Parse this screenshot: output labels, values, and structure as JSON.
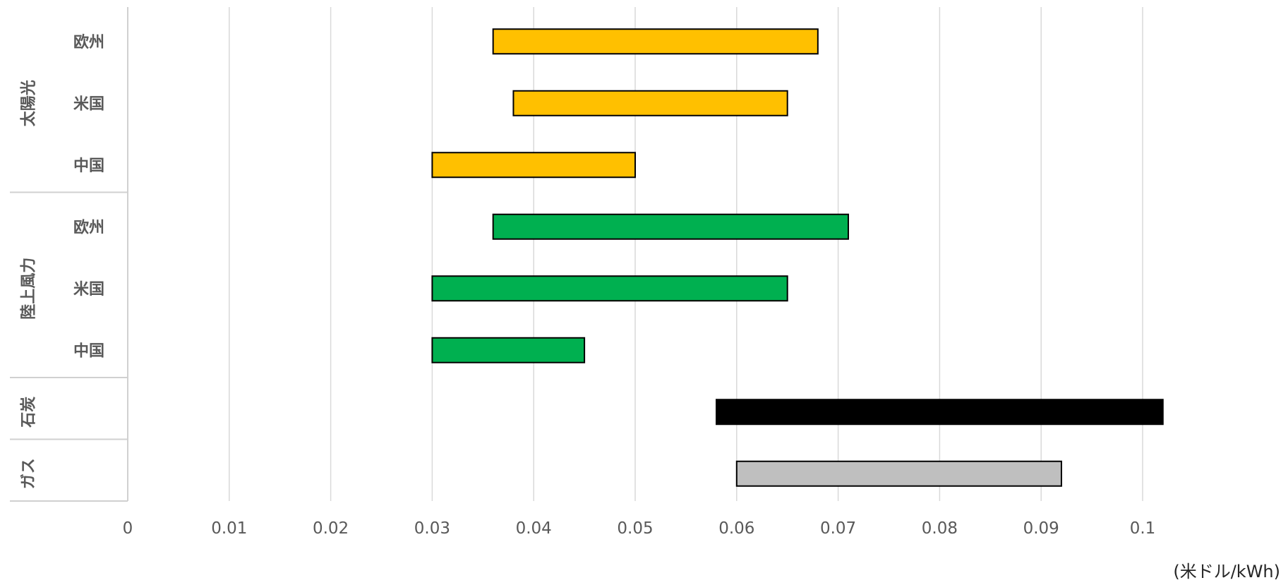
{
  "chart_data": {
    "type": "bar",
    "orientation": "horizontal",
    "subtype": "floating-range",
    "title": "",
    "xlabel": "",
    "ylabel": "",
    "unit": "(米ドル/kWh)",
    "xlim": [
      0,
      0.11
    ],
    "x_ticks": [
      0,
      0.01,
      0.02,
      0.03,
      0.04,
      0.05,
      0.06,
      0.07,
      0.08,
      0.09,
      0.1
    ],
    "x_tick_labels": [
      "0",
      "0.01",
      "0.02",
      "0.03",
      "0.04",
      "0.05",
      "0.06",
      "0.07",
      "0.08",
      "0.09",
      "0.1"
    ],
    "grid": true,
    "legend": "none",
    "groups": [
      {
        "label": "太陽光",
        "color": "#FFC000",
        "items": [
          {
            "label": "欧州",
            "low": 0.036,
            "high": 0.068
          },
          {
            "label": "米国",
            "low": 0.038,
            "high": 0.065
          },
          {
            "label": "中国",
            "low": 0.03,
            "high": 0.05
          }
        ]
      },
      {
        "label": "陸上風力",
        "color": "#00B050",
        "items": [
          {
            "label": "欧州",
            "low": 0.036,
            "high": 0.071
          },
          {
            "label": "米国",
            "low": 0.03,
            "high": 0.065
          },
          {
            "label": "中国",
            "low": 0.03,
            "high": 0.045
          }
        ]
      },
      {
        "label": "石炭",
        "color": "#000000",
        "items": [
          {
            "label": "",
            "low": 0.058,
            "high": 0.102
          }
        ]
      },
      {
        "label": "ガス",
        "color": "#BFBFBF",
        "items": [
          {
            "label": "",
            "low": 0.06,
            "high": 0.092
          }
        ]
      }
    ]
  }
}
